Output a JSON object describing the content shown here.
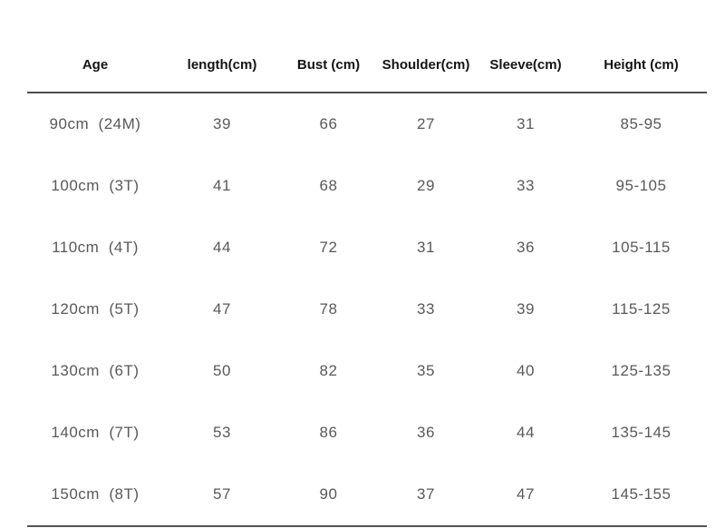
{
  "chart_data": {
    "type": "table",
    "title": "",
    "columns": [
      "Age",
      "length(cm)",
      "Bust (cm)",
      "Shoulder(cm)",
      "Sleeve(cm)",
      "Height (cm)"
    ],
    "rows": [
      [
        "90cm  (24M)",
        "39",
        "66",
        "27",
        "31",
        "85-95"
      ],
      [
        "100cm  (3T)",
        "41",
        "68",
        "29",
        "33",
        "95-105"
      ],
      [
        "110cm  (4T)",
        "44",
        "72",
        "31",
        "36",
        "105-115"
      ],
      [
        "120cm  (5T)",
        "47",
        "78",
        "33",
        "39",
        "115-125"
      ],
      [
        "130cm  (6T)",
        "50",
        "82",
        "35",
        "40",
        "125-135"
      ],
      [
        "140cm  (7T)",
        "53",
        "86",
        "36",
        "44",
        "135-145"
      ],
      [
        "150cm  (8T)",
        "57",
        "90",
        "37",
        "47",
        "145-155"
      ]
    ],
    "layout": {
      "grid": "off",
      "header_rule": true,
      "bottom_rule": true
    }
  },
  "colors": {
    "header_text": "#141414",
    "body_text": "#595959",
    "rule": "#4d4d4d",
    "background": "#ffffff"
  }
}
